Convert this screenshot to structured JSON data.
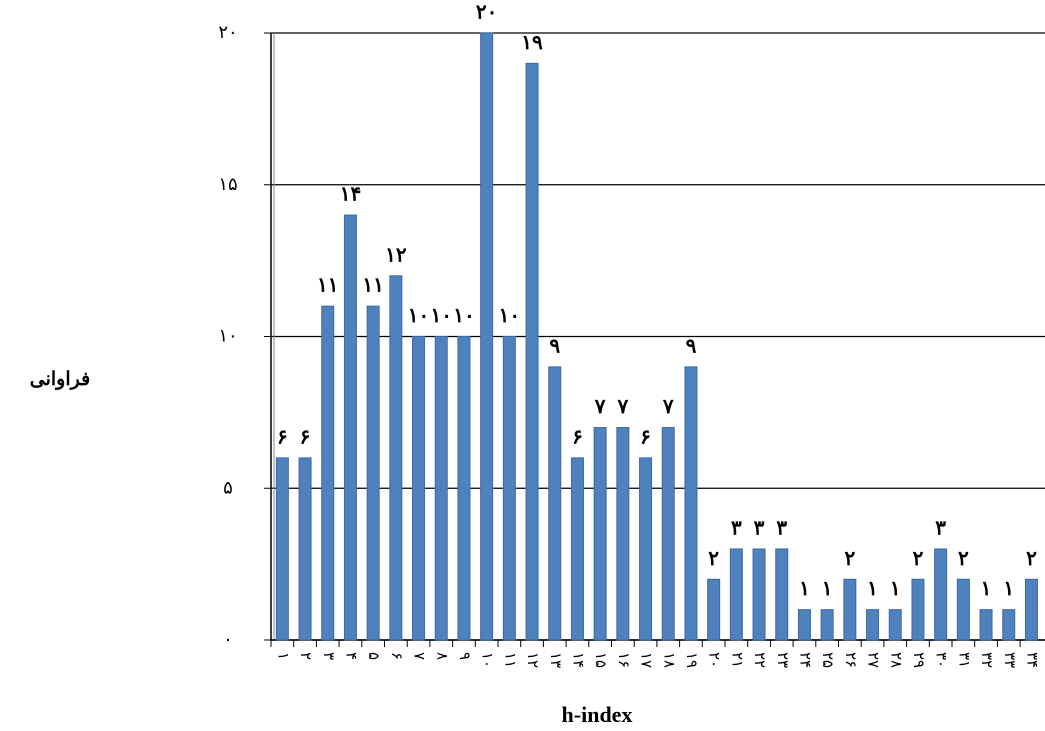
{
  "chart_data": {
    "type": "bar",
    "y_label": "فراوانی",
    "x_label": "h-index",
    "categories": [
      "۱",
      "۲",
      "۳",
      "۴",
      "۵",
      "۶",
      "۷",
      "۸",
      "۹",
      "۱۰",
      "۱۱",
      "۱۲",
      "۱۳",
      "۱۴",
      "۱۵",
      "۱۶",
      "۱۷",
      "۱۸",
      "۱۹",
      "۲۰",
      "۲۱",
      "۲۲",
      "۲۳",
      "۲۴",
      "۲۵",
      "۲۶",
      "۲۷",
      "۲۸",
      "۲۹",
      "۳۰",
      "۳۱",
      "۳۲",
      "۳۳",
      "۳۴"
    ],
    "values": [
      6,
      6,
      11,
      14,
      11,
      12,
      10,
      10,
      10,
      20,
      10,
      19,
      9,
      6,
      7,
      7,
      6,
      7,
      9,
      2,
      3,
      3,
      3,
      1,
      1,
      2,
      1,
      1,
      2,
      3,
      2,
      1,
      1,
      2
    ],
    "value_labels": [
      "۶",
      "۶",
      "۱۱",
      "۱۴",
      "۱۱",
      "۱۲",
      "۱۰",
      "۱۰",
      "۱۰",
      "۲۰",
      "۱۰",
      "۱۹",
      "۹",
      "۶",
      "۷",
      "۷",
      "۶",
      "۷",
      "۹",
      "۲",
      "۳",
      "۳",
      "۳",
      "۱",
      "۱",
      "۲",
      "۱",
      "۱",
      "۲",
      "۳",
      "۲",
      "۱",
      "۱",
      "۲"
    ],
    "color": "#4f81bd",
    "ylim": [
      0,
      20
    ],
    "yticks": [
      {
        "value": 0,
        "label": "۰"
      },
      {
        "value": 5,
        "label": "۵"
      },
      {
        "value": 10,
        "label": "۱۰"
      },
      {
        "value": 15,
        "label": "۱۵"
      },
      {
        "value": 20,
        "label": "۲۰"
      }
    ],
    "grid": true
  }
}
